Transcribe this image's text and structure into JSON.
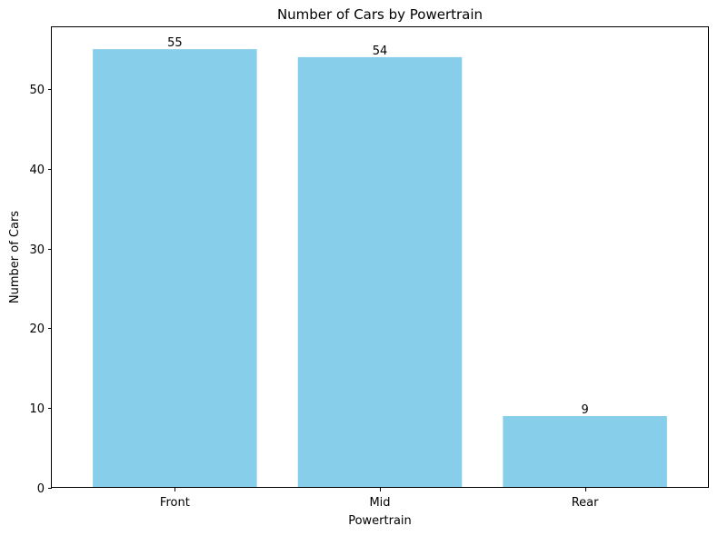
{
  "chart_data": {
    "type": "bar",
    "title": "Number of Cars by Powertrain",
    "xlabel": "Powertrain",
    "ylabel": "Number of Cars",
    "categories": [
      "Front",
      "Mid",
      "Rear"
    ],
    "values": [
      55,
      54,
      9
    ],
    "data_labels": [
      "55",
      "54",
      "9"
    ],
    "ylim": [
      0,
      57.75
    ],
    "yticks": [
      0,
      10,
      20,
      30,
      40,
      50
    ],
    "ytick_labels": [
      "0",
      "10",
      "20",
      "30",
      "40",
      "50"
    ],
    "bar_color": "#87CEEB",
    "grid": false,
    "legend": "none"
  }
}
